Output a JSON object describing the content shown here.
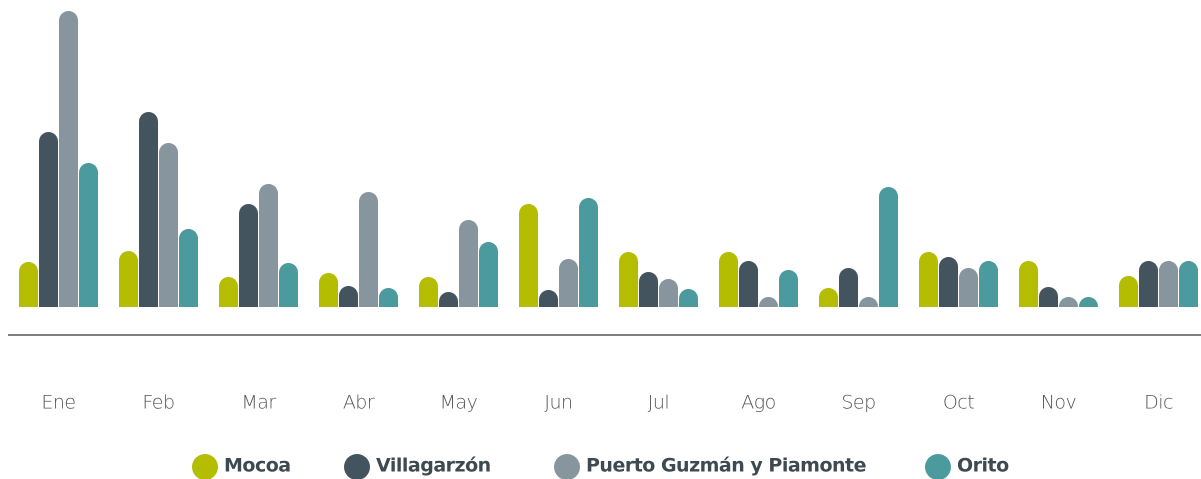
{
  "chart_data": {
    "type": "bar",
    "categories": [
      "Ene",
      "Feb",
      "Mar",
      "Abr",
      "May",
      "Jun",
      "Jul",
      "Ago",
      "Sep",
      "Oct",
      "Nov",
      "Dic"
    ],
    "series": [
      {
        "name": "Mocoa",
        "color": "#b5bd00",
        "values": [
          45,
          56,
          30,
          34,
          30,
          103,
          55,
          55,
          19,
          55,
          46,
          31
        ]
      },
      {
        "name": "Villagarzón",
        "color": "#44545e",
        "values": [
          175,
          195,
          103,
          21,
          15,
          17,
          35,
          46,
          39,
          50,
          20,
          46
        ]
      },
      {
        "name": "Puerto Guzmán y Piamonte",
        "color": "#86959e",
        "values": [
          296,
          164,
          123,
          115,
          87,
          48,
          28,
          10,
          10,
          39,
          10,
          46
        ]
      },
      {
        "name": "Orito",
        "color": "#4a9a9e",
        "values": [
          144,
          78,
          44,
          19,
          65,
          109,
          18,
          37,
          120,
          46,
          10,
          46
        ]
      }
    ],
    "legend": "bottom"
  }
}
